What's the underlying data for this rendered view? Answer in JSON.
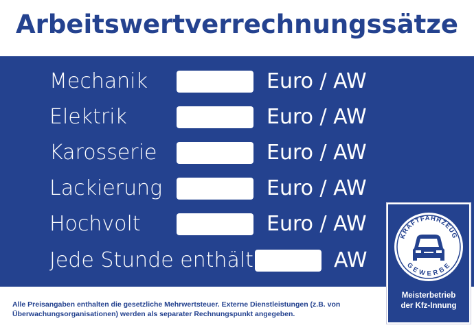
{
  "title": "Arbeitswertverrechnungssätze",
  "rows": [
    {
      "label": "Mechanik",
      "value": "",
      "unit": "Euro / AW"
    },
    {
      "label": "Elektrik",
      "value": "",
      "unit": "Euro / AW"
    },
    {
      "label": "Karosserie",
      "value": "",
      "unit": "Euro / AW"
    },
    {
      "label": "Lackierung",
      "value": "",
      "unit": "Euro / AW"
    },
    {
      "label": "Hochvolt",
      "value": "",
      "unit": "Euro / AW"
    },
    {
      "label": "Jede Stunde enthält",
      "value": "",
      "unit": "AW"
    }
  ],
  "footer": {
    "line1": "Alle Preisangaben enthalten die gesetzliche Mehrwertsteuer. Externe Dienstleistungen (z.B. von",
    "line2": "Überwachungsorganisationen) werden als separater Rechnungspunkt angegeben."
  },
  "badge": {
    "ring_top": "KRAFTFAHRZEUG",
    "ring_bottom": "GEWERBE",
    "line1": "Meisterbetrieb",
    "line2": "der Kfz-Innung",
    "icon": "car-icon"
  },
  "colors": {
    "brand": "#24428f"
  }
}
